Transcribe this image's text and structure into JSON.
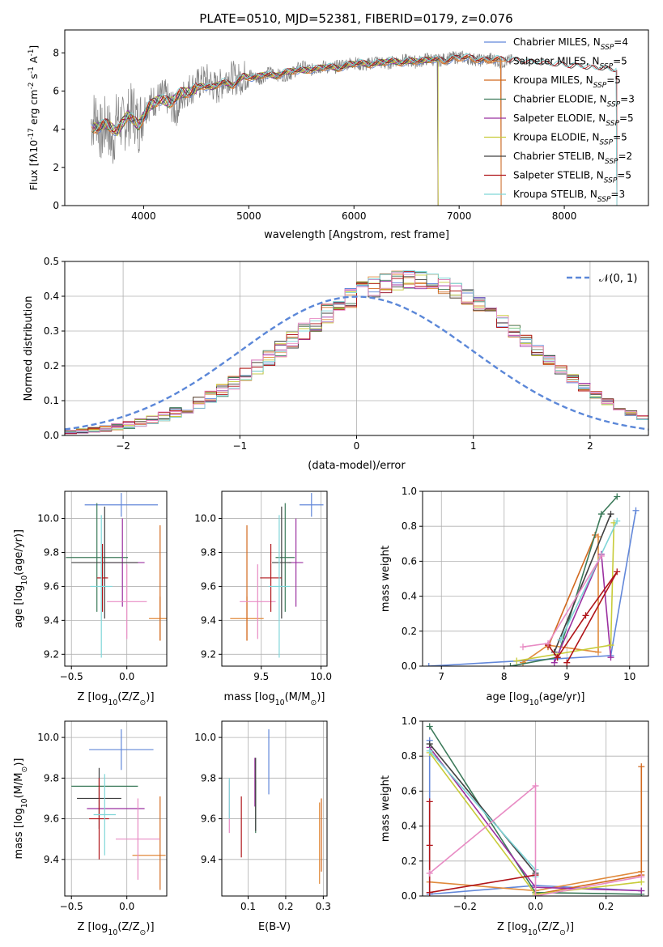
{
  "figure": {
    "title": "PLATE=0510, MJD=52381, FIBERID=0179, z=0.076"
  },
  "chart_data": [
    {
      "type": "line",
      "panel": "spectrum",
      "xlabel": "wavelength [Angstrom, rest frame]",
      "ylabel_parts": [
        "Flux [f",
        "λ",
        "10",
        "-17",
        " erg cm",
        "-2",
        " s",
        "-1",
        " A",
        "-1",
        "]"
      ],
      "xlim": [
        3250,
        8800
      ],
      "ylim": [
        0,
        9.2
      ],
      "xticks": [
        4000,
        5000,
        6000,
        7000,
        8000
      ],
      "yticks": [
        0,
        2,
        4,
        6,
        8
      ],
      "grid": false,
      "legend_placement": "right",
      "data_series": {
        "name": "",
        "color": "#808080",
        "x": [
          3500,
          3550,
          3600,
          3650,
          3700,
          3750,
          3800,
          3850,
          3900,
          3950,
          4000,
          4100,
          4200,
          4300,
          4400,
          4500,
          4600,
          4700,
          4800,
          4900,
          5000,
          5100,
          5200,
          5300,
          5400,
          5500,
          5600,
          5700,
          5800,
          5900,
          6000,
          6100,
          6200,
          6300,
          6400,
          6500,
          6600,
          6700,
          6800,
          6900,
          7000,
          7100,
          7200,
          7300,
          7400,
          7500
        ],
        "y": [
          4.3,
          4.8,
          3.6,
          4.5,
          3.1,
          4.7,
          4.2,
          4.6,
          5.0,
          4.2,
          5.1,
          5.5,
          5.8,
          4.9,
          6.0,
          6.3,
          6.6,
          6.1,
          6.8,
          6.6,
          6.9,
          6.6,
          7.0,
          6.8,
          6.9,
          7.3,
          7.1,
          7.3,
          7.2,
          7.4,
          7.5,
          7.3,
          7.6,
          7.4,
          7.6,
          7.6,
          7.5,
          7.7,
          7.6,
          7.7,
          7.8,
          7.7,
          7.6,
          7.7,
          7.5,
          7.6
        ]
      },
      "model_shape": {
        "x": [
          3550,
          3650,
          3750,
          3850,
          3950,
          4050,
          4150,
          4250,
          4350,
          4450,
          4550,
          4650,
          4750,
          4850,
          4950,
          5050,
          5150,
          5250,
          5350,
          5450,
          5550,
          5650,
          5750,
          5850,
          5950,
          6050,
          6150,
          6250,
          6350,
          6450,
          6550,
          6650,
          6750,
          6850,
          6950,
          7050,
          7150,
          7250,
          7350,
          7450,
          7550,
          7650,
          7750,
          7850,
          7950,
          8050,
          8150,
          8250,
          8350,
          8450
        ],
        "y": [
          4.1,
          4.3,
          3.9,
          4.8,
          4.2,
          5.2,
          5.6,
          5.4,
          5.9,
          6.0,
          6.3,
          6.2,
          6.5,
          6.3,
          6.8,
          6.7,
          6.9,
          6.8,
          7.0,
          7.1,
          7.1,
          7.2,
          7.3,
          7.2,
          7.4,
          7.5,
          7.4,
          7.5,
          7.6,
          7.5,
          7.6,
          7.6,
          7.7,
          7.6,
          7.7,
          7.8,
          7.7,
          7.6,
          7.7,
          7.6,
          7.6,
          7.5,
          7.5,
          7.4,
          7.4,
          7.3,
          7.3,
          7.2,
          7.2,
          7.1
        ]
      },
      "models": [
        {
          "imf": "Chabrier",
          "lib": "MILES",
          "nssp": "4",
          "color": "#6287d9",
          "end": 7400
        },
        {
          "imf": "Salpeter",
          "lib": "MILES",
          "nssp": "5",
          "color": "#e08a3c",
          "end": 7400
        },
        {
          "imf": "Kroupa",
          "lib": "MILES",
          "nssp": "5",
          "color": "#d2691e",
          "end": 7400
        },
        {
          "imf": "Chabrier",
          "lib": "ELODIE",
          "nssp": "3",
          "color": "#3c7a5a",
          "end": 6800
        },
        {
          "imf": "Salpeter",
          "lib": "ELODIE",
          "nssp": "5",
          "color": "#9b30a0",
          "end": 6800
        },
        {
          "imf": "Kroupa",
          "lib": "ELODIE",
          "nssp": "5",
          "color": "#c8cc3a",
          "end": 6800
        },
        {
          "imf": "Chabrier",
          "lib": "STELIB",
          "nssp": "2",
          "color": "#404040",
          "end": 8500
        },
        {
          "imf": "Salpeter",
          "lib": "STELIB",
          "nssp": "5",
          "color": "#b0151a",
          "end": 8500
        },
        {
          "imf": "Kroupa",
          "lib": "STELIB",
          "nssp": "3",
          "color": "#7fd6d8",
          "end": 8500
        }
      ]
    },
    {
      "type": "histogram",
      "panel": "residuals",
      "xlabel": "(data-model)/error",
      "ylabel": "Normed distribution",
      "xlim": [
        -2.5,
        2.5
      ],
      "ylim": [
        0,
        0.5
      ],
      "xticks": [
        -2,
        -1,
        0,
        1,
        2
      ],
      "xtick_labels": [
        "−2",
        "−1",
        "0",
        "1",
        "2"
      ],
      "yticks": [
        0.0,
        0.1,
        0.2,
        0.3,
        0.4,
        0.5
      ],
      "grid": true,
      "legend_placement": "top-right",
      "legend_label": "𝒩(0, 1)",
      "bin_width": 0.1,
      "bins_start": -2.5,
      "bin_base": [
        0.01,
        0.013,
        0.016,
        0.02,
        0.025,
        0.03,
        0.037,
        0.045,
        0.055,
        0.066,
        0.079,
        0.094,
        0.111,
        0.13,
        0.151,
        0.174,
        0.197,
        0.222,
        0.248,
        0.274,
        0.3,
        0.325,
        0.35,
        0.373,
        0.394,
        0.412,
        0.427,
        0.438,
        0.445,
        0.448,
        0.446,
        0.44,
        0.43,
        0.416,
        0.398,
        0.377,
        0.353,
        0.327,
        0.3,
        0.272,
        0.244,
        0.216,
        0.189,
        0.163,
        0.139,
        0.117,
        0.097,
        0.08,
        0.064,
        0.051
      ],
      "gaussian": {
        "mu": 0,
        "sigma": 1,
        "color": "#5b87d8"
      }
    },
    {
      "type": "errorbar",
      "panel": "age-vs-Z",
      "xlabel_parts": [
        "Z [log",
        "10",
        "(Z/Z",
        "⊙",
        ")]"
      ],
      "ylabel_parts": [
        "age  [log",
        "10",
        "(age/yr)]"
      ],
      "xlim": [
        -0.56,
        0.36
      ],
      "ylim": [
        9.13,
        10.16
      ],
      "xticks": [
        -0.5,
        0.0
      ],
      "xtick_labels": [
        "−0.5",
        "0.0"
      ],
      "yticks": [
        9.2,
        9.4,
        9.6,
        9.8,
        10.0
      ],
      "grid": true,
      "points": [
        {
          "x": -0.05,
          "y": 10.08,
          "xerr": 0.33,
          "yerr": 0.07
        },
        {
          "x": 0.3,
          "y": 9.41,
          "xerr": 0.1,
          "yerr": 0.13
        },
        {
          "x": 0.3,
          "y": 9.62,
          "xerr": 0.0,
          "yerr": 0.34
        },
        {
          "x": -0.27,
          "y": 9.77,
          "xerr": 0.28,
          "yerr": 0.32
        },
        {
          "x": -0.04,
          "y": 9.74,
          "xerr": 0.2,
          "yerr": 0.26
        },
        {
          "x": 0.0,
          "y": 9.51,
          "xerr": 0.18,
          "yerr": 0.22
        },
        {
          "x": -0.2,
          "y": 9.74,
          "xerr": 0.3,
          "yerr": 0.33
        },
        {
          "x": -0.22,
          "y": 9.65,
          "xerr": 0.05,
          "yerr": 0.2
        },
        {
          "x": -0.23,
          "y": 9.6,
          "xerr": 0.1,
          "yerr": 0.42
        }
      ]
    },
    {
      "type": "errorbar",
      "panel": "age-vs-mass",
      "xlabel_parts": [
        "mass [log",
        "10",
        "(M/M",
        "⊙",
        ")]"
      ],
      "xlim": [
        9.17,
        10.05
      ],
      "ylim": [
        9.13,
        10.16
      ],
      "xticks": [
        9.5,
        10.0
      ],
      "xtick_labels": [
        "9.5",
        "10.0"
      ],
      "yticks": [
        9.2,
        9.4,
        9.6,
        9.8,
        10.0
      ],
      "grid": true,
      "points": [
        {
          "x": 9.92,
          "y": 10.08,
          "xerr": 0.1,
          "yerr": 0.07
        },
        {
          "x": 9.38,
          "y": 9.41,
          "xerr": 0.14,
          "yerr": 0.13
        },
        {
          "x": 9.38,
          "y": 9.62,
          "xerr": 0.0,
          "yerr": 0.34
        },
        {
          "x": 9.7,
          "y": 9.77,
          "xerr": 0.08,
          "yerr": 0.32
        },
        {
          "x": 9.79,
          "y": 9.74,
          "xerr": 0.06,
          "yerr": 0.26
        },
        {
          "x": 9.47,
          "y": 9.51,
          "xerr": 0.15,
          "yerr": 0.22
        },
        {
          "x": 9.67,
          "y": 9.74,
          "xerr": 0.08,
          "yerr": 0.33
        },
        {
          "x": 9.58,
          "y": 9.65,
          "xerr": 0.09,
          "yerr": 0.2
        },
        {
          "x": 9.65,
          "y": 9.6,
          "xerr": 0.09,
          "yerr": 0.42
        }
      ]
    },
    {
      "type": "line",
      "panel": "massweight-vs-age",
      "xlabel_parts": [
        "age  [log",
        "10",
        "(age/yr)]"
      ],
      "ylabel": "mass weight",
      "xlim": [
        6.7,
        10.3
      ],
      "ylim": [
        0,
        1.0
      ],
      "xticks": [
        7,
        8,
        9,
        10
      ],
      "yticks": [
        0.0,
        0.2,
        0.4,
        0.6,
        0.8,
        1.0
      ],
      "grid": true,
      "series": [
        {
          "x": [
            6.8,
            9.7,
            10.1
          ],
          "y": [
            0.0,
            0.06,
            0.89
          ]
        },
        {
          "x": [
            8.3,
            8.7,
            9.5,
            9.5
          ],
          "y": [
            0.02,
            0.12,
            0.08,
            0.74
          ]
        },
        {
          "x": [
            8.7,
            9.45
          ],
          "y": [
            0.11,
            0.75
          ]
        },
        {
          "x": [
            8.1,
            8.85,
            9.55,
            9.8
          ],
          "y": [
            0.0,
            0.05,
            0.87,
            0.97
          ]
        },
        {
          "x": [
            8.8,
            9.55,
            9.7
          ],
          "y": [
            0.02,
            0.64,
            0.05
          ]
        },
        {
          "x": [
            8.2,
            9.7,
            9.75
          ],
          "y": [
            0.03,
            0.12,
            0.82
          ]
        },
        {
          "x": [
            8.8,
            9.7
          ],
          "y": [
            0.08,
            0.87
          ]
        },
        {
          "x": [
            8.7,
            8.85,
            9.3,
            9.8,
            9.0
          ],
          "y": [
            0.12,
            0.05,
            0.29,
            0.54,
            0.02
          ]
        },
        {
          "x": [
            8.9,
            9.8
          ],
          "y": [
            0.15,
            0.83
          ]
        },
        {
          "x": [
            8.3,
            8.7,
            9.55
          ],
          "y": [
            0.11,
            0.13,
            0.63
          ]
        }
      ]
    },
    {
      "type": "errorbar",
      "panel": "mass-vs-Z",
      "xlabel_parts": [
        "Z [log",
        "10",
        "(Z/Z",
        "⊙",
        ")]"
      ],
      "ylabel_parts": [
        "mass [log",
        "10",
        "(M/M",
        "⊙",
        ")]"
      ],
      "xlim": [
        -0.56,
        0.36
      ],
      "ylim": [
        9.22,
        10.08
      ],
      "xticks": [
        -0.5,
        0.0
      ],
      "xtick_labels": [
        "−0.5",
        "0.0"
      ],
      "yticks": [
        9.4,
        9.6,
        9.8,
        10.0
      ],
      "grid": true,
      "points": [
        {
          "x": -0.05,
          "y": 9.94,
          "xerr": 0.29,
          "yerr": 0.1
        },
        {
          "x": 0.2,
          "y": 9.42,
          "xerr": 0.15,
          "yerr": 0.0
        },
        {
          "x": 0.3,
          "y": 9.48,
          "xerr": 0.0,
          "yerr": 0.23
        },
        {
          "x": -0.2,
          "y": 9.76,
          "xerr": 0.3,
          "yerr": 0.0
        },
        {
          "x": -0.1,
          "y": 9.65,
          "xerr": 0.26,
          "yerr": 0.0
        },
        {
          "x": 0.1,
          "y": 9.5,
          "xerr": 0.2,
          "yerr": 0.2
        },
        {
          "x": -0.25,
          "y": 9.7,
          "xerr": 0.2,
          "yerr": 0.15
        },
        {
          "x": -0.25,
          "y": 9.6,
          "xerr": 0.09,
          "yerr": 0.2
        },
        {
          "x": -0.2,
          "y": 9.62,
          "xerr": 0.1,
          "yerr": 0.2
        }
      ]
    },
    {
      "type": "errorbar",
      "panel": "mass-vs-EBV",
      "xlabel": "E(B-V)",
      "xlim": [
        0.03,
        0.31
      ],
      "ylim": [
        9.22,
        10.08
      ],
      "xticks": [
        0.1,
        0.2,
        0.3
      ],
      "xtick_labels": [
        "0.1",
        "0.2",
        "0.3"
      ],
      "yticks": [
        9.4,
        9.6,
        9.8,
        10.0
      ],
      "grid": true,
      "points": [
        {
          "x": 0.155,
          "y": 9.88,
          "xerr": 0.0,
          "yerr": 0.16
        },
        {
          "x": 0.29,
          "y": 9.48,
          "xerr": 0.0,
          "yerr": 0.2
        },
        {
          "x": 0.295,
          "y": 9.52,
          "xerr": 0.0,
          "yerr": 0.18
        },
        {
          "x": 0.12,
          "y": 9.66,
          "xerr": 0.0,
          "yerr": 0.13
        },
        {
          "x": 0.118,
          "y": 9.78,
          "xerr": 0.0,
          "yerr": 0.12
        },
        {
          "x": 0.05,
          "y": 9.66,
          "xerr": 0.0,
          "yerr": 0.13
        },
        {
          "x": 0.12,
          "y": 9.72,
          "xerr": 0.0,
          "yerr": 0.18
        },
        {
          "x": 0.082,
          "y": 9.56,
          "xerr": 0.0,
          "yerr": 0.15
        },
        {
          "x": 0.05,
          "y": 9.7,
          "xerr": 0.0,
          "yerr": 0.1
        }
      ]
    },
    {
      "type": "line",
      "panel": "massweight-vs-Z",
      "xlabel_parts": [
        "Z [log",
        "10",
        "(Z/Z",
        "⊙",
        ")]"
      ],
      "ylabel": "mass weight",
      "xlim": [
        -0.32,
        0.32
      ],
      "ylim": [
        0,
        1.0
      ],
      "xticks": [
        -0.2,
        0.0,
        0.2
      ],
      "xtick_labels": [
        "−0.2",
        "0.0",
        "0.2"
      ],
      "yticks": [
        0.0,
        0.2,
        0.4,
        0.6,
        0.8,
        1.0
      ],
      "grid": true,
      "series": [
        {
          "x": [
            -0.3,
            -0.3,
            0.0,
            0.3
          ],
          "y": [
            0.89,
            0.01,
            0.06,
            0.03
          ]
        },
        {
          "x": [
            -0.3,
            0.0,
            0.3
          ],
          "y": [
            0.08,
            0.03,
            0.14
          ]
        },
        {
          "x": [
            0.0,
            0.3,
            0.3
          ],
          "y": [
            0.01,
            0.12,
            0.74
          ]
        },
        {
          "x": [
            -0.3,
            0.0,
            0.3
          ],
          "y": [
            0.97,
            0.02,
            0.01
          ]
        },
        {
          "x": [
            -0.3,
            0.0,
            0.3
          ],
          "y": [
            0.85,
            0.05,
            0.03
          ]
        },
        {
          "x": [
            -0.3,
            0.0,
            0.3
          ],
          "y": [
            0.82,
            0.01,
            0.08
          ]
        },
        {
          "x": [
            -0.3,
            0.0
          ],
          "y": [
            0.87,
            0.13
          ]
        },
        {
          "x": [
            -0.3,
            -0.3,
            -0.3,
            0.0
          ],
          "y": [
            0.54,
            0.29,
            0.02,
            0.12
          ]
        },
        {
          "x": [
            -0.3,
            0.0,
            0.0
          ],
          "y": [
            0.83,
            0.15,
            0.11
          ]
        },
        {
          "x": [
            -0.3,
            0.0,
            0.0,
            0.3
          ],
          "y": [
            0.13,
            0.63,
            0.0,
            0.11
          ]
        }
      ]
    }
  ]
}
